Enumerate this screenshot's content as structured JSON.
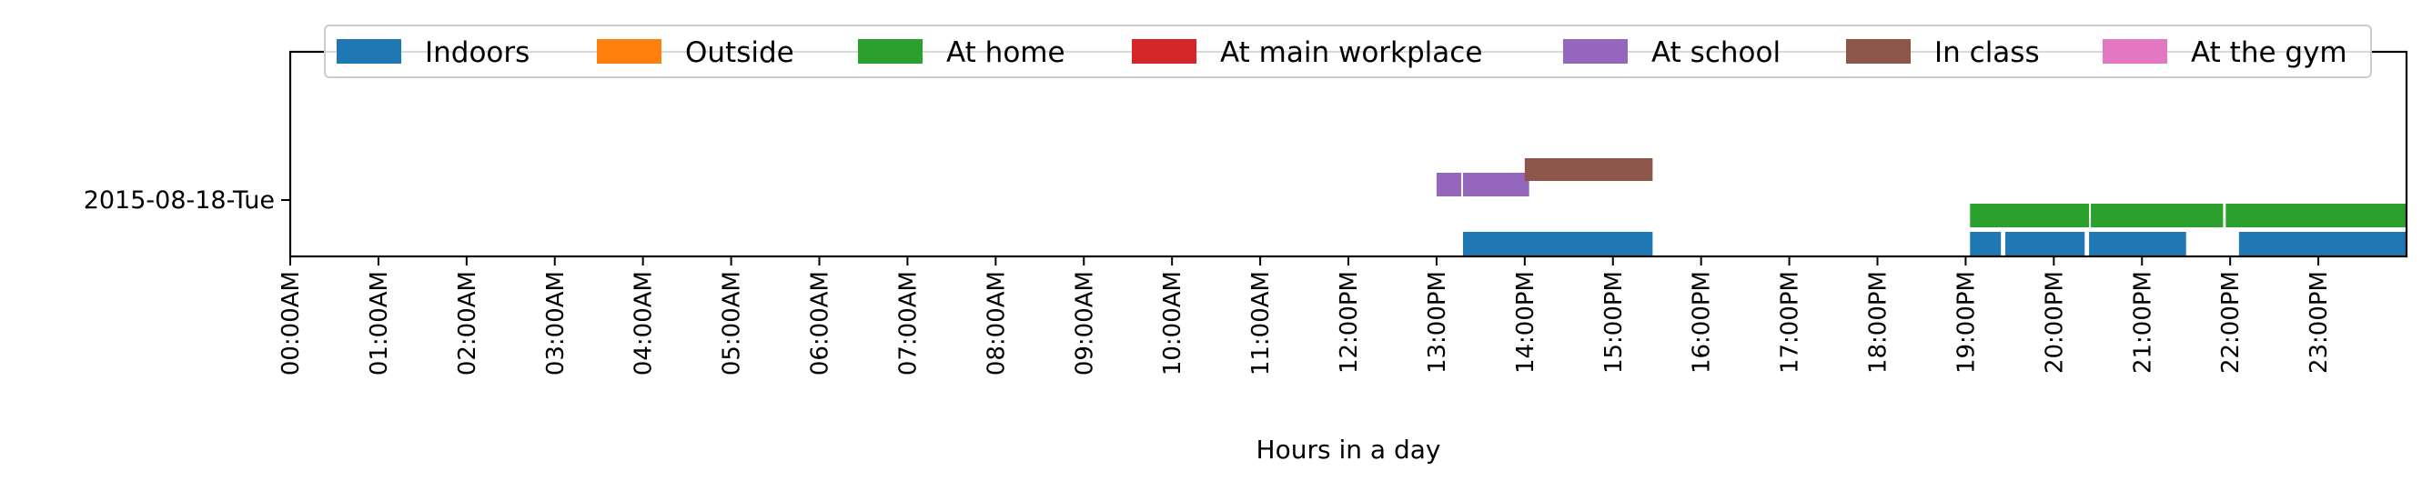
{
  "chart_data": {
    "type": "timeline",
    "xlabel": "Hours in a day",
    "xlim": [
      0,
      24
    ],
    "x_ticks": [
      {
        "hour": 0,
        "label": "00:00AM"
      },
      {
        "hour": 1,
        "label": "01:00AM"
      },
      {
        "hour": 2,
        "label": "02:00AM"
      },
      {
        "hour": 3,
        "label": "03:00AM"
      },
      {
        "hour": 4,
        "label": "04:00AM"
      },
      {
        "hour": 5,
        "label": "05:00AM"
      },
      {
        "hour": 6,
        "label": "06:00AM"
      },
      {
        "hour": 7,
        "label": "07:00AM"
      },
      {
        "hour": 8,
        "label": "08:00AM"
      },
      {
        "hour": 9,
        "label": "09:00AM"
      },
      {
        "hour": 10,
        "label": "10:00AM"
      },
      {
        "hour": 11,
        "label": "11:00AM"
      },
      {
        "hour": 12,
        "label": "12:00PM"
      },
      {
        "hour": 13,
        "label": "13:00PM"
      },
      {
        "hour": 14,
        "label": "14:00PM"
      },
      {
        "hour": 15,
        "label": "15:00PM"
      },
      {
        "hour": 16,
        "label": "16:00PM"
      },
      {
        "hour": 17,
        "label": "17:00PM"
      },
      {
        "hour": 18,
        "label": "18:00PM"
      },
      {
        "hour": 19,
        "label": "19:00PM"
      },
      {
        "hour": 20,
        "label": "20:00PM"
      },
      {
        "hour": 21,
        "label": "21:00PM"
      },
      {
        "hour": 22,
        "label": "22:00PM"
      },
      {
        "hour": 23,
        "label": "23:00PM"
      }
    ],
    "y_category": "2015-08-18-Tue",
    "legend_position": "top",
    "series": [
      {
        "name": "Indoors",
        "color": "#1f77b4",
        "intervals": [
          [
            13.3,
            15.45
          ],
          [
            19.05,
            19.4
          ],
          [
            19.45,
            20.35
          ],
          [
            20.4,
            21.5
          ],
          [
            22.1,
            24.0
          ]
        ]
      },
      {
        "name": "Outside",
        "color": "#ff7f0e",
        "intervals": []
      },
      {
        "name": "At home",
        "color": "#2ca02c",
        "intervals": [
          [
            19.05,
            20.4
          ],
          [
            20.42,
            21.92
          ],
          [
            21.95,
            24.0
          ]
        ]
      },
      {
        "name": "At main workplace",
        "color": "#d62728",
        "intervals": []
      },
      {
        "name": "At school",
        "color": "#9467bd",
        "intervals": [
          [
            13.0,
            13.28
          ],
          [
            13.3,
            14.05
          ]
        ]
      },
      {
        "name": "In class",
        "color": "#8c564b",
        "intervals": [
          [
            14.0,
            15.45
          ]
        ]
      },
      {
        "name": "At the gym",
        "color": "#e377c2",
        "intervals": []
      }
    ]
  }
}
